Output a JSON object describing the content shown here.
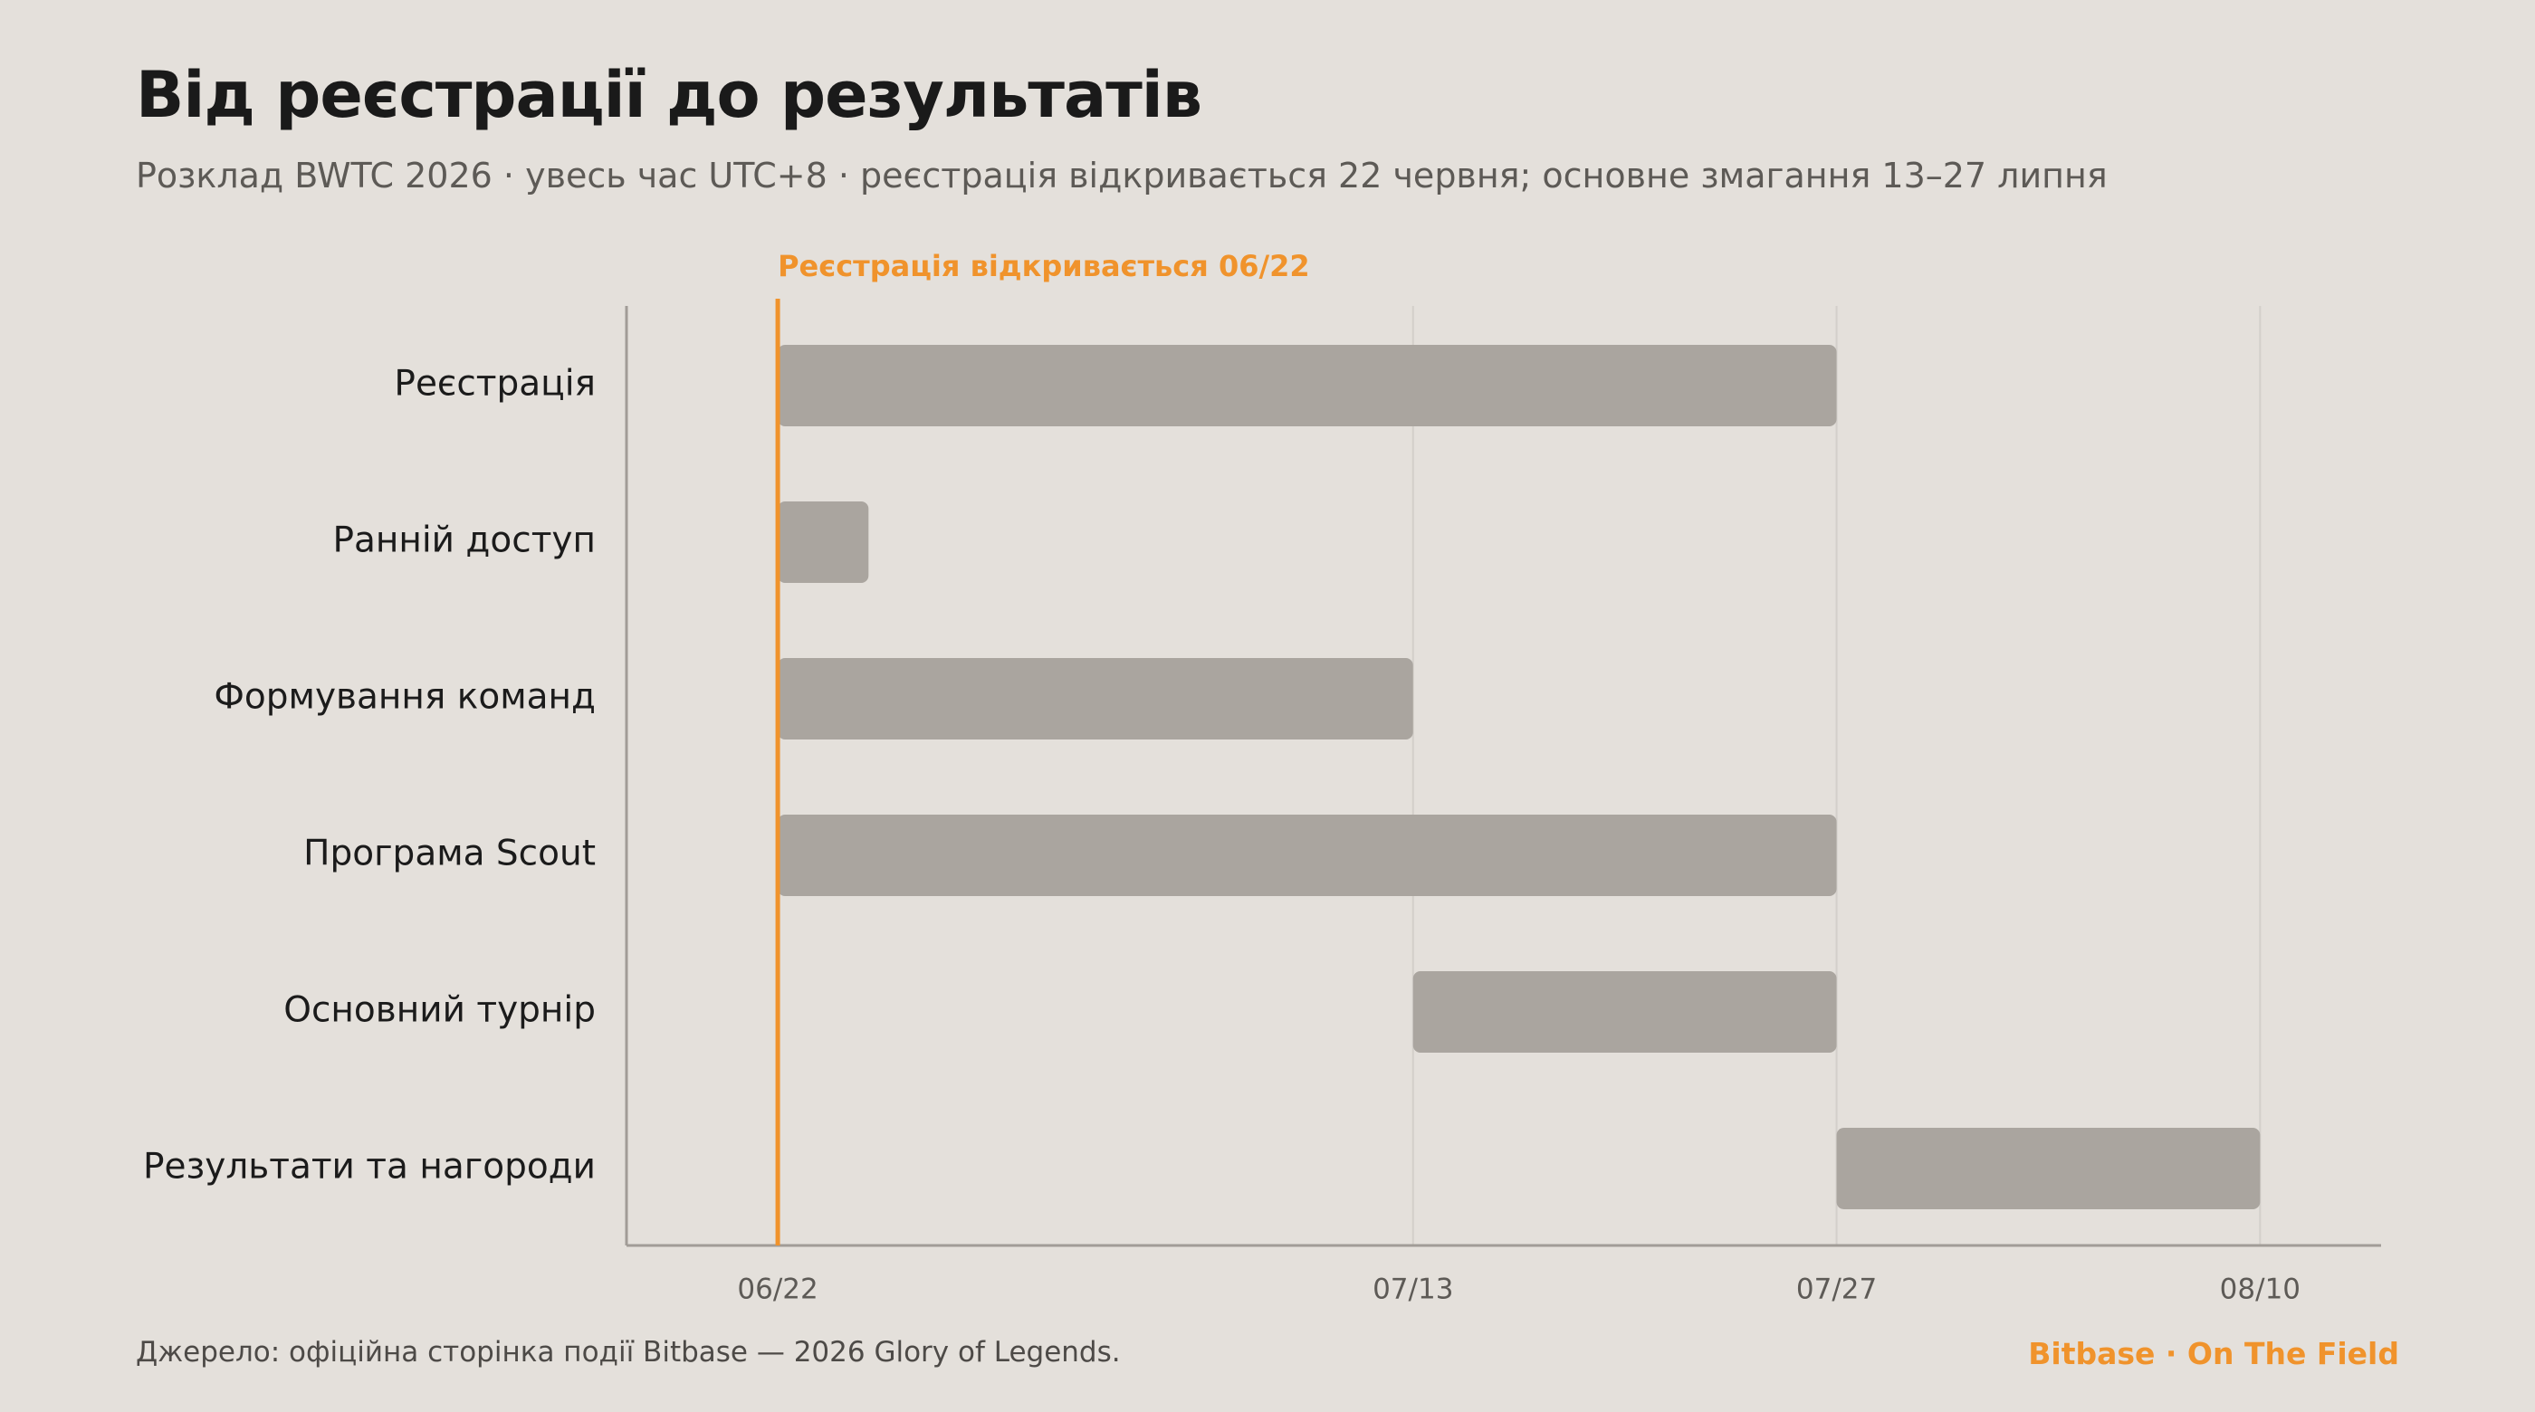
{
  "header": {
    "title": "Від реєстрації до результатів",
    "subtitle": "Розклад BWTC 2026 · увесь час UTC+8 · реєстрація відкривається 22 червня; основне змагання 13–27 липня"
  },
  "footer": {
    "source": "Джерело: офіційна сторінка події Bitbase — 2026 Glory of Legends.",
    "brand": "Bitbase · On The Field"
  },
  "colors": {
    "background": "#e4e0db",
    "bar": "#aaa59f",
    "accent": "#f0932c",
    "axis": "#a19c97",
    "grid": "#d3cfca"
  },
  "chart_data": {
    "type": "gantt",
    "year": 2026,
    "x_ticks": [
      "06/22",
      "07/13",
      "07/27",
      "08/10"
    ],
    "x_tick_dates": [
      "2026-06-22",
      "2026-07-13",
      "2026-07-27",
      "2026-08-10"
    ],
    "xlim": [
      "2026-06-17",
      "2026-08-14"
    ],
    "grid": true,
    "marker": {
      "date": "2026-06-22",
      "label": "Реєстрація відкривається 06/22"
    },
    "tasks": [
      {
        "label": "Реєстрація",
        "start": "2026-06-22",
        "end": "2026-07-27"
      },
      {
        "label": "Ранній доступ",
        "start": "2026-06-22",
        "end": "2026-06-25"
      },
      {
        "label": "Формування команд",
        "start": "2026-06-22",
        "end": "2026-07-13"
      },
      {
        "label": "Програма Scout",
        "start": "2026-06-22",
        "end": "2026-07-27"
      },
      {
        "label": "Основний турнір",
        "start": "2026-07-13",
        "end": "2026-07-27"
      },
      {
        "label": "Результати та нагороди",
        "start": "2026-07-27",
        "end": "2026-08-10"
      }
    ]
  }
}
